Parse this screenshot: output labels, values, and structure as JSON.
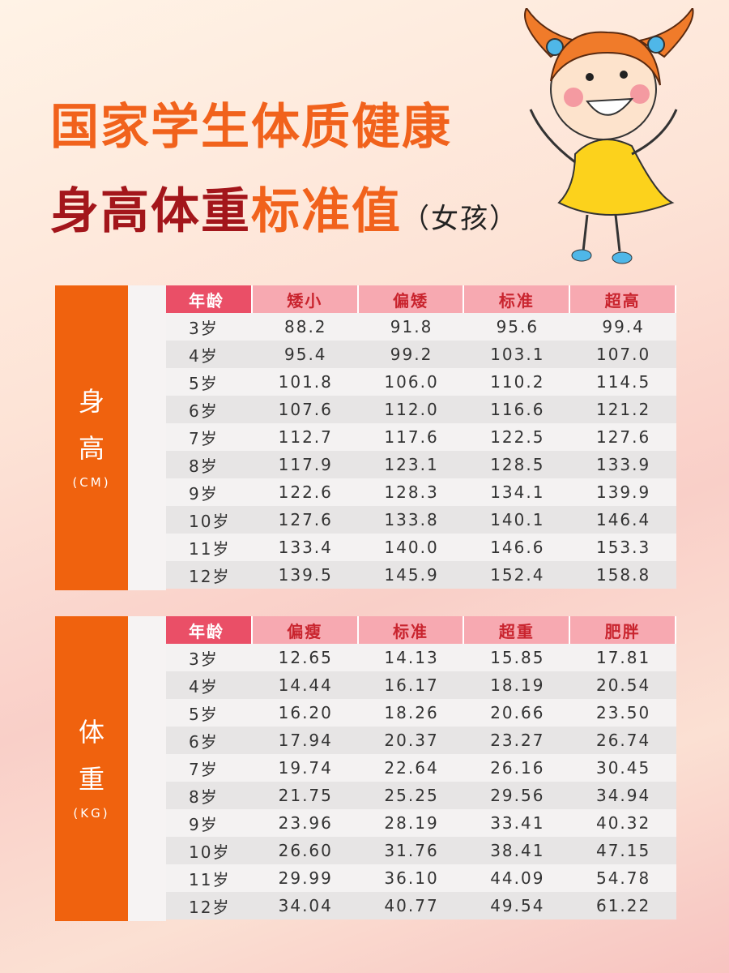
{
  "header": {
    "title": "国家学生体质健康",
    "subtitle": [
      "身高体重",
      "标准值",
      "（女孩）"
    ]
  },
  "tables": [
    {
      "label": [
        "身",
        "高"
      ],
      "unit": "(CM)",
      "columns": [
        "年龄",
        "矮小",
        "偏矮",
        "标准",
        "超高"
      ],
      "rows": [
        [
          "3岁",
          "88.2",
          "91.8",
          "95.6",
          "99.4"
        ],
        [
          "4岁",
          "95.4",
          "99.2",
          "103.1",
          "107.0"
        ],
        [
          "5岁",
          "101.8",
          "106.0",
          "110.2",
          "114.5"
        ],
        [
          "6岁",
          "107.6",
          "112.0",
          "116.6",
          "121.2"
        ],
        [
          "7岁",
          "112.7",
          "117.6",
          "122.5",
          "127.6"
        ],
        [
          "8岁",
          "117.9",
          "123.1",
          "128.5",
          "133.9"
        ],
        [
          "9岁",
          "122.6",
          "128.3",
          "134.1",
          "139.9"
        ],
        [
          "10岁",
          "127.6",
          "133.8",
          "140.1",
          "146.4"
        ],
        [
          "11岁",
          "133.4",
          "140.0",
          "146.6",
          "153.3"
        ],
        [
          "12岁",
          "139.5",
          "145.9",
          "152.4",
          "158.8"
        ]
      ]
    },
    {
      "label": [
        "体",
        "重"
      ],
      "unit": "(KG)",
      "columns": [
        "年龄",
        "偏瘦",
        "标准",
        "超重",
        "肥胖"
      ],
      "rows": [
        [
          "3岁",
          "12.65",
          "14.13",
          "15.85",
          "17.81"
        ],
        [
          "4岁",
          "14.44",
          "16.17",
          "18.19",
          "20.54"
        ],
        [
          "5岁",
          "16.20",
          "18.26",
          "20.66",
          "23.50"
        ],
        [
          "6岁",
          "17.94",
          "20.37",
          "23.27",
          "26.74"
        ],
        [
          "7岁",
          "19.74",
          "22.64",
          "26.16",
          "30.45"
        ],
        [
          "8岁",
          "21.75",
          "25.25",
          "29.56",
          "34.94"
        ],
        [
          "9岁",
          "23.96",
          "28.19",
          "33.41",
          "40.32"
        ],
        [
          "10岁",
          "26.60",
          "31.76",
          "38.41",
          "47.15"
        ],
        [
          "11岁",
          "29.99",
          "36.10",
          "44.09",
          "54.78"
        ],
        [
          "12岁",
          "34.04",
          "40.77",
          "49.54",
          "61.22"
        ]
      ]
    }
  ]
}
